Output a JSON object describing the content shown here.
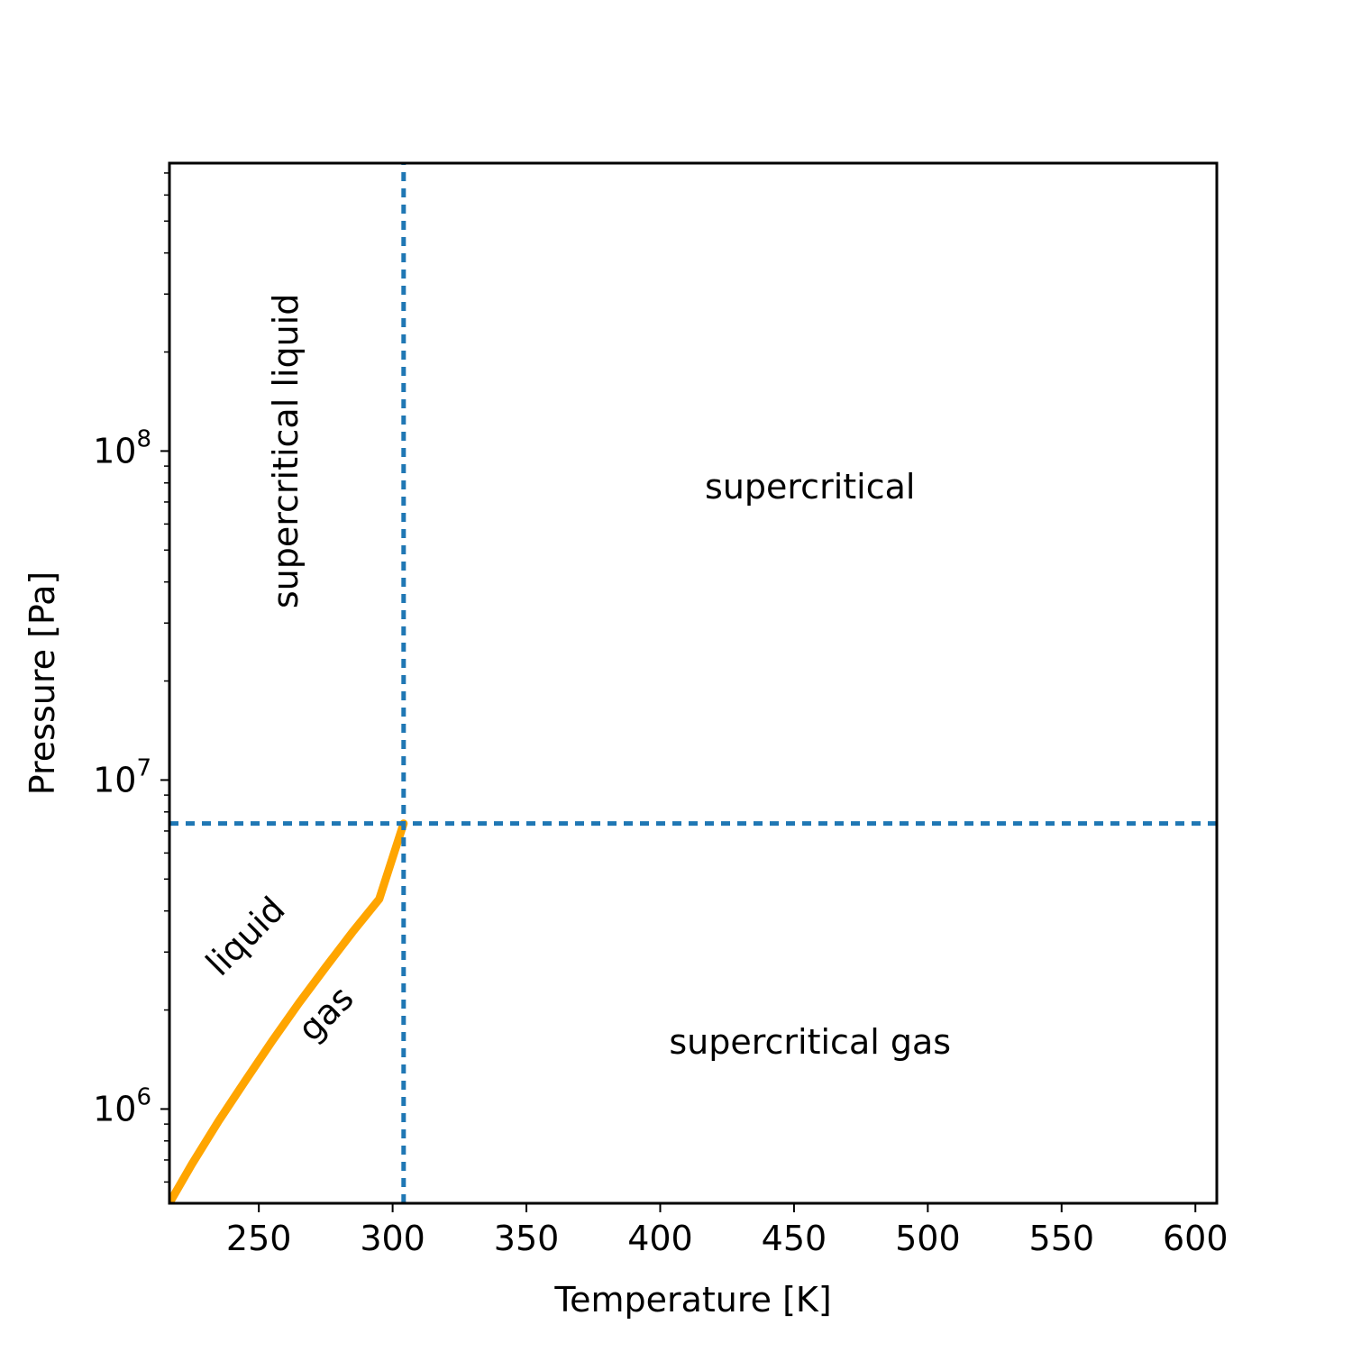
{
  "chart_data": {
    "type": "line",
    "title": "",
    "xlabel": "Temperature [K]",
    "ylabel": "Pressure [Pa]",
    "xlim": [
      216.6,
      608
    ],
    "ylim": [
      517000,
      750000000
    ],
    "yscale": "log",
    "grid": false,
    "x_ticks": [
      250,
      300,
      350,
      400,
      450,
      500,
      550,
      600
    ],
    "x_tick_labels": [
      "250",
      "300",
      "350",
      "400",
      "450",
      "500",
      "550",
      "600"
    ],
    "y_ticks": [
      {
        "value": 1000000,
        "base": "10",
        "exp": "6"
      },
      {
        "value": 10000000,
        "base": "10",
        "exp": "7"
      },
      {
        "value": 100000000,
        "base": "10",
        "exp": "8"
      }
    ],
    "series": [
      {
        "kind": "saturation-curve",
        "color": "#ffa500",
        "x": [
          216.6,
          225,
          235,
          245,
          255,
          265,
          275,
          285,
          295,
          304.1
        ],
        "y": [
          518000,
          680000,
          920000,
          1220000,
          1610000,
          2100000,
          2700000,
          3450000,
          4350000,
          7380000
        ]
      },
      {
        "kind": "critical-temperature",
        "color": "#1f77b4",
        "x": [
          304.1,
          304.1
        ],
        "y": [
          517000,
          750000000
        ]
      },
      {
        "kind": "critical-pressure",
        "color": "#1f77b4",
        "x": [
          216.6,
          608
        ],
        "y": [
          7380000,
          7380000
        ]
      }
    ],
    "annotations": [
      {
        "text": "supercritical liquid",
        "x": 260,
        "y": 100000000,
        "rotation": -90
      },
      {
        "text": "supercritical",
        "x": 456,
        "y": 78000000,
        "rotation": 0
      },
      {
        "text": "liquid",
        "x": 245,
        "y": 3350000,
        "rotation": -45
      },
      {
        "text": "gas",
        "x": 275,
        "y": 1950000,
        "rotation": -45
      },
      {
        "text": "supercritical gas",
        "x": 456,
        "y": 1600000,
        "rotation": 0
      }
    ]
  }
}
